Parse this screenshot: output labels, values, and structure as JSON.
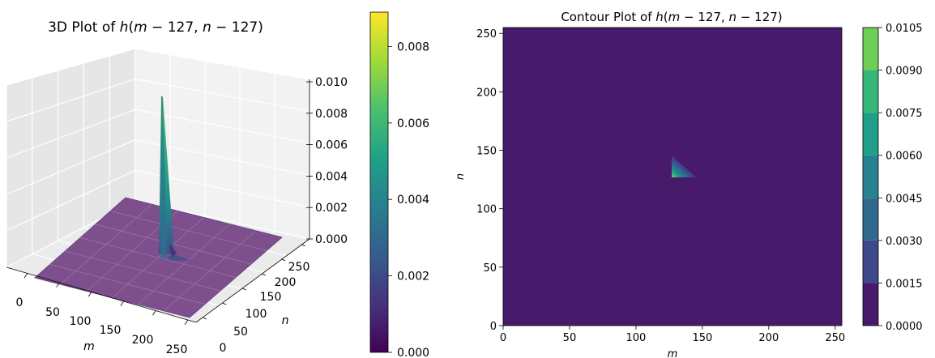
{
  "chart_data": [
    {
      "type": "surface3d",
      "title": "3D Plot of h(m - 127, n - 127)",
      "title_parts": {
        "prefix": "3D Plot of ",
        "fn": "h",
        "open": "(",
        "var1": "m",
        "mid": " − 127, ",
        "var2": "n",
        "close": " − 127)"
      },
      "xlabel": "m",
      "ylabel": "n",
      "zlabel": "",
      "xlim": [
        0,
        255
      ],
      "ylim": [
        0,
        255
      ],
      "zlim": [
        0,
        0.01
      ],
      "x_ticks": [
        "0",
        "50",
        "100",
        "150",
        "200",
        "250"
      ],
      "y_ticks": [
        "0",
        "50",
        "100",
        "150",
        "200",
        "250"
      ],
      "z_ticks": [
        "0.000",
        "0.002",
        "0.004",
        "0.006",
        "0.008",
        "0.010"
      ],
      "surface": {
        "baseline": 0.0,
        "peak": {
          "m": 127,
          "n": 127,
          "value": 0.0089
        },
        "nonzero_region": "triangle m>=127, n>=127, (m-127)+(n-127)<=18"
      },
      "colorbar": {
        "min": 0.0,
        "max": 0.0089,
        "ticks": [
          "0.000",
          "0.002",
          "0.004",
          "0.006",
          "0.008"
        ],
        "tick_values": [
          0.0,
          0.002,
          0.004,
          0.006,
          0.008
        ],
        "colormap": "viridis"
      }
    },
    {
      "type": "contour",
      "title": "Contour Plot of h(m - 127, n - 127)",
      "title_parts": {
        "prefix": "Contour Plot of ",
        "fn": "h",
        "open": "(",
        "var1": "m",
        "mid": " − 127, ",
        "var2": "n",
        "close": " − 127)"
      },
      "xlabel": "m",
      "ylabel": "n",
      "xlim": [
        0,
        255
      ],
      "ylim": [
        0,
        255
      ],
      "x_ticks": [
        0,
        50,
        100,
        150,
        200,
        250
      ],
      "y_ticks": [
        0,
        50,
        100,
        150,
        200,
        250
      ],
      "region": {
        "vertices": [
          [
            127,
            127
          ],
          [
            145,
            127
          ],
          [
            127,
            145
          ]
        ],
        "peak": [
          127,
          127
        ]
      },
      "levels": [
        0.0,
        0.0015,
        0.003,
        0.0045,
        0.006,
        0.0075,
        0.009,
        0.0105
      ],
      "colorbar": {
        "ticks": [
          "0.0000",
          "0.0015",
          "0.0030",
          "0.0045",
          "0.0060",
          "0.0075",
          "0.0090",
          "0.0105"
        ],
        "colormap": "viridis"
      }
    }
  ],
  "colors": {
    "viridis": [
      "#440154",
      "#46327e",
      "#365c8d",
      "#277f8e",
      "#1fa187",
      "#4ac16d",
      "#a0da39",
      "#fde725"
    ],
    "contour_bands": [
      "#481a6c",
      "#3f4889",
      "#31688e",
      "#26828e",
      "#1f9e89",
      "#35b779",
      "#6ece58",
      "#b5de2b"
    ],
    "surface_base": "#7d4f8c",
    "pane": "#f2f2f2"
  }
}
